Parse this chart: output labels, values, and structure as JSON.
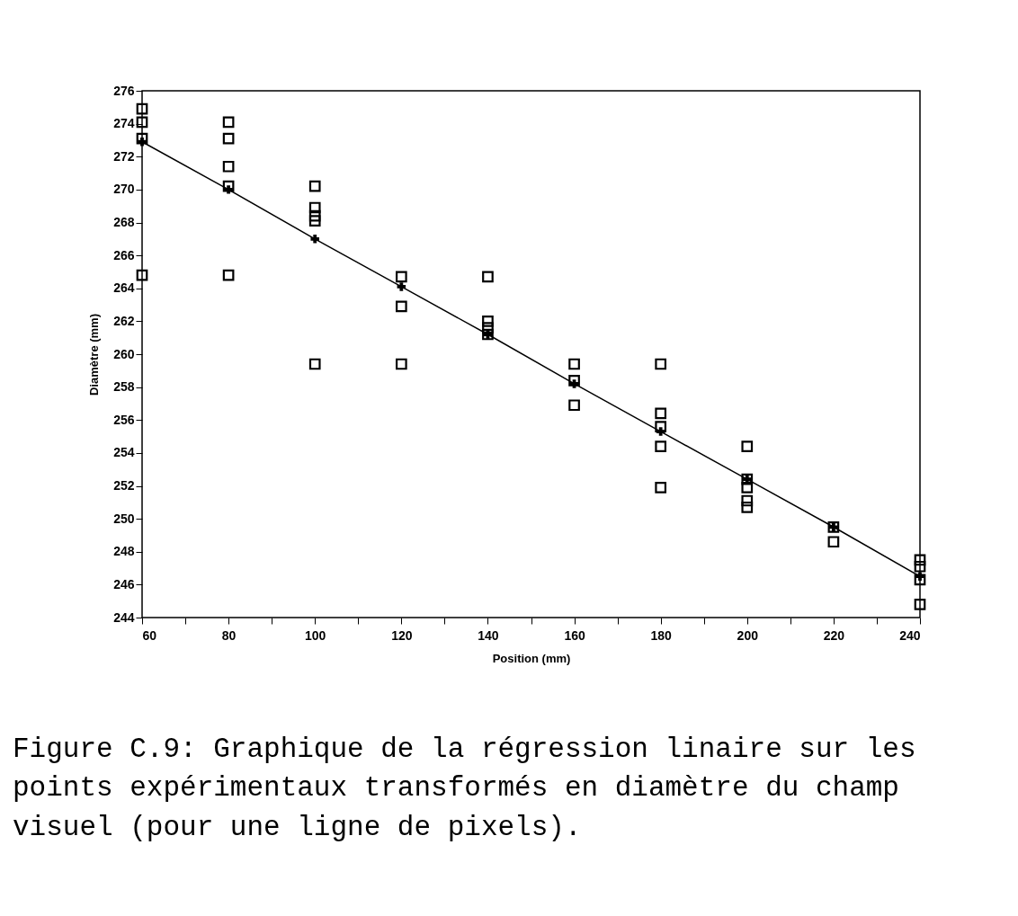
{
  "chart_data": {
    "type": "scatter",
    "xlabel": "Position (mm)",
    "ylabel": "Diamètre (mm)",
    "xlim": [
      60,
      240
    ],
    "ylim": [
      244,
      276
    ],
    "xticks": [
      60,
      {
        "value": 70,
        "label": null
      },
      80,
      {
        "value": 90,
        "label": null
      },
      100,
      {
        "value": 110,
        "label": null
      },
      120,
      {
        "value": 130,
        "label": null
      },
      140,
      {
        "value": 150,
        "label": null
      },
      160,
      {
        "value": 170,
        "label": null
      },
      180,
      {
        "value": 190,
        "label": null
      },
      200,
      {
        "value": 210,
        "label": null
      },
      220,
      {
        "value": 230,
        "label": null
      },
      240
    ],
    "yticks": [
      244,
      246,
      248,
      250,
      252,
      254,
      256,
      258,
      260,
      262,
      264,
      266,
      268,
      270,
      272,
      274,
      276
    ],
    "grid": false,
    "series": [
      {
        "marker": "square",
        "color": "#000000",
        "x": [
          60,
          60,
          60,
          60,
          80,
          80,
          80,
          80,
          80,
          100,
          100,
          100,
          100,
          100,
          120,
          120,
          120,
          140,
          140,
          140,
          140,
          160,
          160,
          160,
          180,
          180,
          180,
          180,
          180,
          200,
          200,
          200,
          200,
          200,
          220,
          220,
          240,
          240,
          240,
          240
        ],
        "values": [
          274.9,
          274.1,
          273.1,
          264.8,
          274.1,
          273.1,
          271.4,
          270.2,
          264.8,
          270.2,
          268.9,
          268.4,
          268.1,
          259.4,
          264.7,
          262.9,
          259.4,
          264.7,
          262.0,
          261.6,
          261.2,
          259.4,
          258.4,
          256.9,
          259.4,
          256.4,
          255.6,
          254.4,
          251.9,
          254.4,
          252.4,
          251.9,
          251.1,
          250.7,
          249.5,
          248.6,
          247.5,
          247.1,
          246.3,
          244.8
        ]
      },
      {
        "type": "line",
        "marker": "cross",
        "color": "#000000",
        "x": [
          60,
          80,
          100,
          120,
          140,
          160,
          180,
          200,
          220,
          240
        ],
        "values": [
          272.9,
          270.0,
          267.0,
          264.1,
          261.2,
          258.2,
          255.3,
          252.4,
          249.5,
          246.5
        ]
      }
    ],
    "annotations": [
      "Figure C.9: Graphique de la régression linaire sur les points expérimentaux transformés en diamètre du champ visuel (pour une ligne de pixels)."
    ]
  }
}
